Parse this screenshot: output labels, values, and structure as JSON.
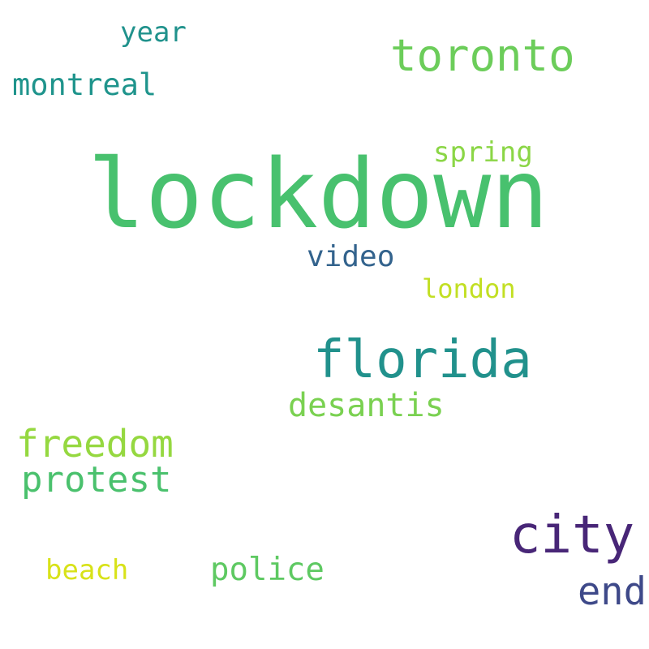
{
  "words": [
    {
      "text": "lockdown",
      "color": "#48c16e"
    },
    {
      "text": "toronto",
      "color": "#6ccd5a"
    },
    {
      "text": "florida",
      "color": "#21918c"
    },
    {
      "text": "city",
      "color": "#482677"
    },
    {
      "text": "freedom",
      "color": "#95d840"
    },
    {
      "text": "protest",
      "color": "#4ac16d"
    },
    {
      "text": "desantis",
      "color": "#7ad151"
    },
    {
      "text": "montreal",
      "color": "#1f948c"
    },
    {
      "text": "end",
      "color": "#3e4989"
    },
    {
      "text": "video",
      "color": "#33638d"
    },
    {
      "text": "police",
      "color": "#5ec962"
    },
    {
      "text": "spring",
      "color": "#8bd646"
    },
    {
      "text": "year",
      "color": "#20928c"
    },
    {
      "text": "beach",
      "color": "#d8e219"
    },
    {
      "text": "london",
      "color": "#c2df23"
    }
  ]
}
